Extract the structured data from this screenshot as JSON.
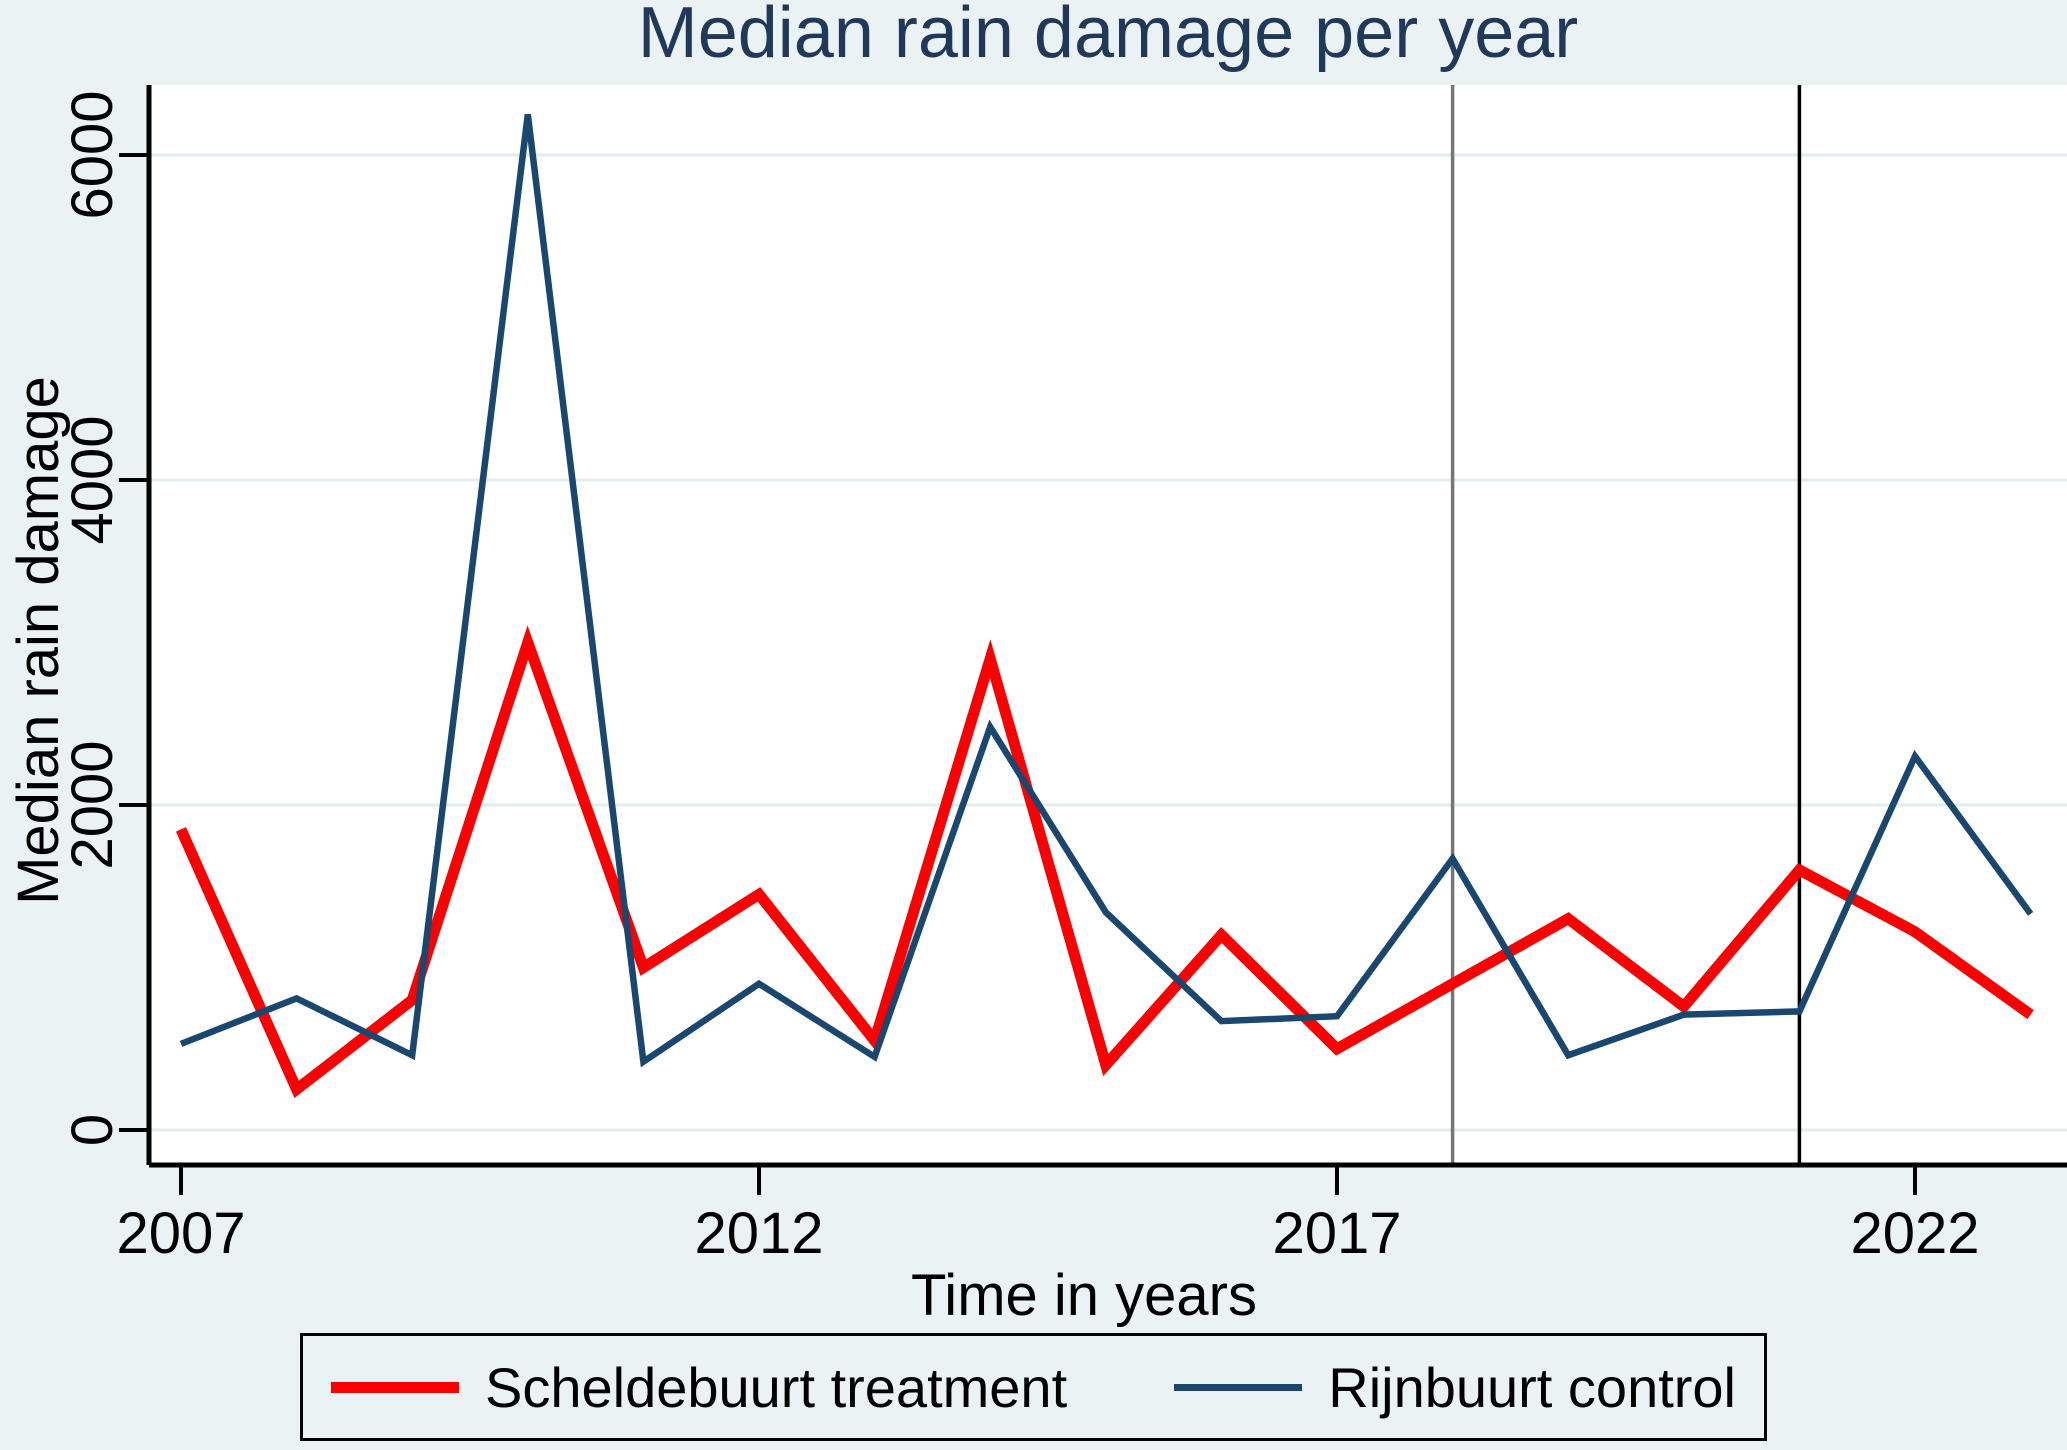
{
  "title": "Median rain damage per year",
  "legend": {
    "items": [
      {
        "label": "Scheldebuurt treatment",
        "color": "#fa0000"
      },
      {
        "label": "Rijnbuurt control",
        "color": "#1a476f"
      }
    ]
  },
  "colors": {
    "background": "#eaf2f3",
    "plot_background": "#ffffff",
    "gridline": "#e2edf0",
    "axis": "#000000",
    "title_text": "#20395a",
    "treatment_line": "#fa0000",
    "control_line": "#1a476f",
    "vline_2018": "#767676",
    "vline_2021": "#000000"
  },
  "chart_data": {
    "type": "line",
    "title": "Median rain damage per year",
    "xlabel": "Time in years",
    "ylabel": "Median rain damage",
    "x": [
      2007,
      2008,
      2009,
      2010,
      2011,
      2012,
      2013,
      2014,
      2015,
      2016,
      2017,
      2018,
      2019,
      2020,
      2021,
      2022,
      2023
    ],
    "series": [
      {
        "name": "Scheldebuurt treatment",
        "color": "#fa0000",
        "values": [
          1850,
          250,
          800,
          3000,
          1000,
          1450,
          550,
          2900,
          400,
          1200,
          500,
          900,
          1300,
          760,
          1600,
          1220,
          710
        ]
      },
      {
        "name": "Rijnbuurt control",
        "color": "#1a476f",
        "values": [
          530,
          810,
          460,
          6250,
          420,
          900,
          450,
          2480,
          1340,
          670,
          700,
          1670,
          460,
          710,
          730,
          2300,
          1330
        ]
      }
    ],
    "xticks": [
      2007,
      2012,
      2017,
      2022
    ],
    "yticks": [
      0,
      2000,
      4000,
      6000
    ],
    "xlim": [
      2006.7,
      2023.3
    ],
    "ylim": [
      0,
      6430
    ],
    "grid": "horizontal",
    "vlines": [
      {
        "x": 2018,
        "color": "#767676"
      },
      {
        "x": 2021,
        "color": "#000000"
      }
    ],
    "legend_position": "bottom"
  }
}
